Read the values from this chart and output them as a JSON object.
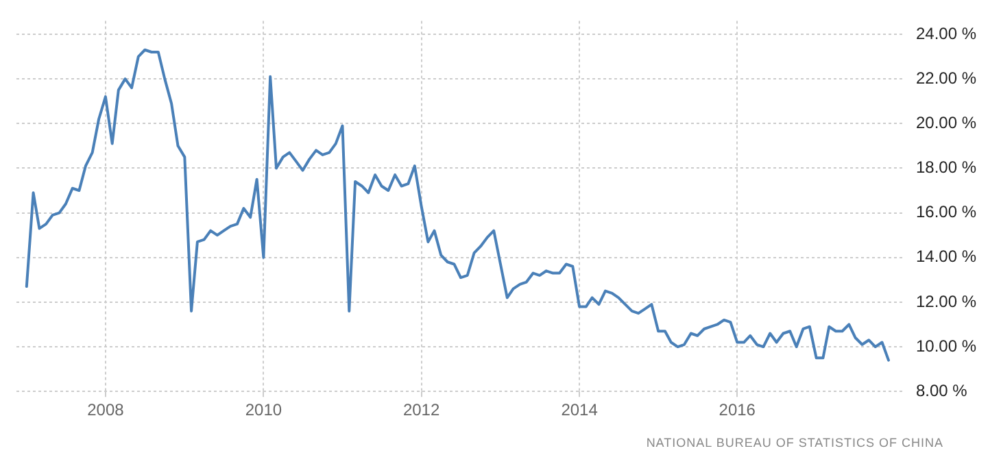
{
  "chart_data": {
    "type": "line",
    "color": "#4a80b8",
    "line_style": "solid",
    "marker": "none",
    "grid": true,
    "legend": false,
    "x": [
      "2007-01",
      "2007-02",
      "2007-03",
      "2007-04",
      "2007-05",
      "2007-06",
      "2007-07",
      "2007-08",
      "2007-09",
      "2007-10",
      "2007-11",
      "2007-12",
      "2008-01",
      "2008-02",
      "2008-03",
      "2008-04",
      "2008-05",
      "2008-06",
      "2008-07",
      "2008-08",
      "2008-09",
      "2008-10",
      "2008-11",
      "2008-12",
      "2009-01",
      "2009-02",
      "2009-03",
      "2009-04",
      "2009-05",
      "2009-06",
      "2009-07",
      "2009-08",
      "2009-09",
      "2009-10",
      "2009-11",
      "2009-12",
      "2010-01",
      "2010-02",
      "2010-03",
      "2010-04",
      "2010-05",
      "2010-06",
      "2010-07",
      "2010-08",
      "2010-09",
      "2010-10",
      "2010-11",
      "2010-12",
      "2011-01",
      "2011-02",
      "2011-03",
      "2011-04",
      "2011-05",
      "2011-06",
      "2011-07",
      "2011-08",
      "2011-09",
      "2011-10",
      "2011-11",
      "2011-12",
      "2012-01",
      "2012-02",
      "2012-03",
      "2012-04",
      "2012-05",
      "2012-06",
      "2012-07",
      "2012-08",
      "2012-09",
      "2012-10",
      "2012-11",
      "2012-12",
      "2013-02",
      "2013-03",
      "2013-04",
      "2013-05",
      "2013-06",
      "2013-07",
      "2013-08",
      "2013-09",
      "2013-10",
      "2013-11",
      "2013-12",
      "2014-01",
      "2014-02",
      "2014-03",
      "2014-04",
      "2014-05",
      "2014-06",
      "2014-07",
      "2014-08",
      "2014-09",
      "2014-10",
      "2014-11",
      "2014-12",
      "2015-01",
      "2015-02",
      "2015-03",
      "2015-04",
      "2015-05",
      "2015-06",
      "2015-07",
      "2015-08",
      "2015-09",
      "2015-10",
      "2015-11",
      "2015-12",
      "2016-01",
      "2016-02",
      "2016-03",
      "2016-04",
      "2016-05",
      "2016-06",
      "2016-07",
      "2016-08",
      "2016-09",
      "2016-10",
      "2016-11",
      "2016-12",
      "2017-01",
      "2017-02",
      "2017-03",
      "2017-04",
      "2017-05",
      "2017-06",
      "2017-07",
      "2017-08",
      "2017-09",
      "2017-10",
      "2017-11",
      "2017-12"
    ],
    "values": [
      12.7,
      16.9,
      15.3,
      15.5,
      15.9,
      16.0,
      16.4,
      17.1,
      17.0,
      18.1,
      18.7,
      20.2,
      21.2,
      19.1,
      21.5,
      22.0,
      21.6,
      23.0,
      23.3,
      23.2,
      23.2,
      22.0,
      20.9,
      19.0,
      18.5,
      11.6,
      14.7,
      14.8,
      15.2,
      15.0,
      15.2,
      15.4,
      15.5,
      16.2,
      15.8,
      17.5,
      14.0,
      22.1,
      18.0,
      18.5,
      18.7,
      18.3,
      17.9,
      18.4,
      18.8,
      18.6,
      18.7,
      19.1,
      19.9,
      11.6,
      17.4,
      17.2,
      16.9,
      17.7,
      17.2,
      17.0,
      17.7,
      17.2,
      17.3,
      18.1,
      16.3,
      14.7,
      15.2,
      14.1,
      13.8,
      13.7,
      13.1,
      13.2,
      14.2,
      14.5,
      14.9,
      15.2,
      12.2,
      12.6,
      12.8,
      12.9,
      13.3,
      13.2,
      13.4,
      13.3,
      13.3,
      13.7,
      13.6,
      11.8,
      11.8,
      12.2,
      11.9,
      12.5,
      12.4,
      12.2,
      11.9,
      11.6,
      11.5,
      11.7,
      11.9,
      10.7,
      10.7,
      10.2,
      10.0,
      10.1,
      10.6,
      10.5,
      10.8,
      10.9,
      11.0,
      11.2,
      11.1,
      10.2,
      10.2,
      10.5,
      10.1,
      10.0,
      10.6,
      10.2,
      10.6,
      10.7,
      10.0,
      10.8,
      10.9,
      9.5,
      9.5,
      10.9,
      10.7,
      10.7,
      11.0,
      10.4,
      10.1,
      10.3,
      10.0,
      10.2,
      9.4
    ],
    "xlim": [
      "2006-11-15",
      "2018-02-15"
    ],
    "xticks": [
      "2008",
      "2010",
      "2012",
      "2014",
      "2016"
    ],
    "ylim": [
      8,
      24.6
    ],
    "yticks": [
      {
        "value": 8,
        "label": "8.00 %"
      },
      {
        "value": 10,
        "label": "10.00 %"
      },
      {
        "value": 12,
        "label": "12.00 %"
      },
      {
        "value": 14,
        "label": "14.00 %"
      },
      {
        "value": 16,
        "label": "16.00 %"
      },
      {
        "value": 18,
        "label": "18.00 %"
      },
      {
        "value": 20,
        "label": "20.00 %"
      },
      {
        "value": 22,
        "label": "22.00 %"
      },
      {
        "value": 24,
        "label": "24.00 %"
      }
    ],
    "annotations": [
      "NATIONAL BUREAU OF STATISTICS OF CHINA"
    ]
  }
}
